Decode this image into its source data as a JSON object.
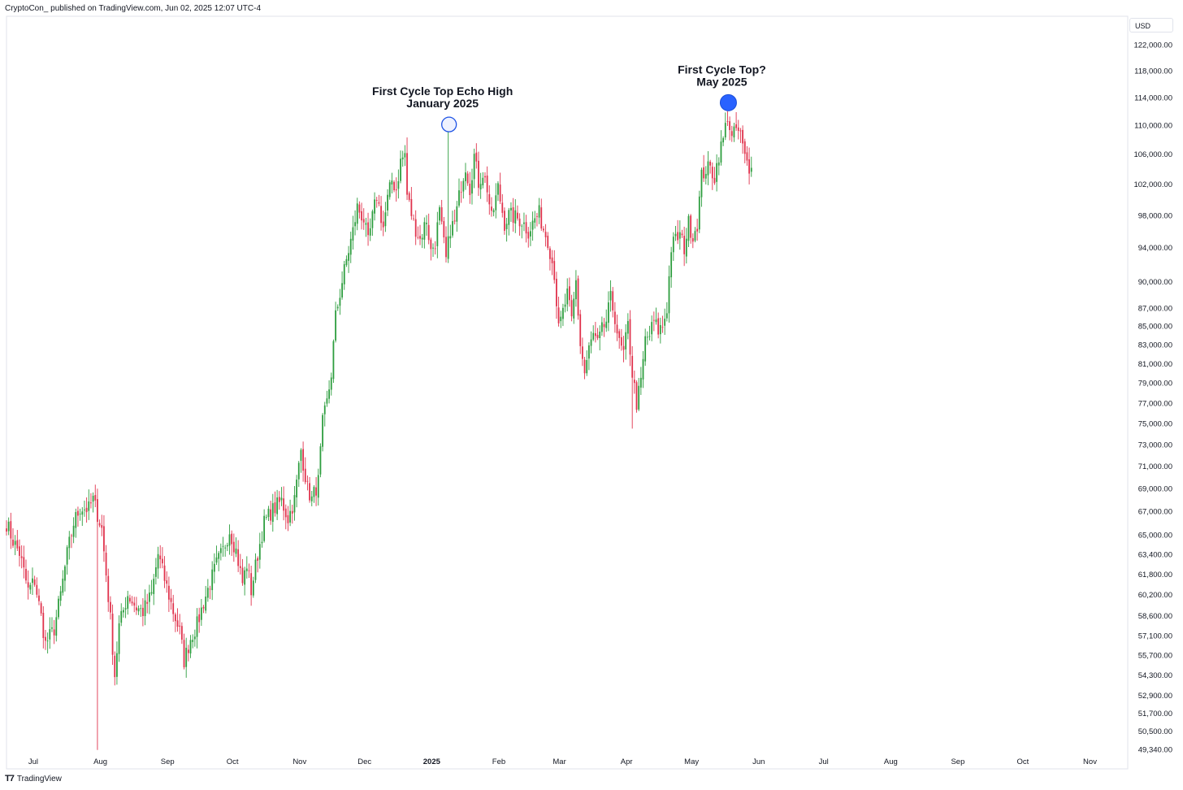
{
  "header": {
    "publisher_line": "CryptoCon_ published on TradingView.com, Jun 02, 2025 12:07 UTC-4"
  },
  "footer": {
    "logo_mark": "T7",
    "brand": "TradingView"
  },
  "price_axis": {
    "currency": "USD"
  },
  "colors": {
    "up": "#22ab94",
    "up_candle": "#2e9e3f",
    "down": "#e0334d",
    "marker_fill": "#2962ff",
    "marker_hollow": "#1e53e5",
    "axis": "#e0e3eb",
    "text": "#131722"
  },
  "chart_data": {
    "type": "candlestick",
    "scale": "log",
    "ylim": [
      48800,
      124000
    ],
    "y_ticks": [
      122000,
      118000,
      114000,
      110000,
      106000,
      102000,
      98000,
      94000,
      90000,
      87000,
      85000,
      83000,
      81000,
      79000,
      77000,
      75000,
      73000,
      71000,
      69000,
      67000,
      65000,
      63400,
      61800,
      60200,
      58600,
      57100,
      55700,
      54300,
      52900,
      51700,
      50500,
      49340
    ],
    "y_tick_labels": [
      "122,000.00",
      "118,000.00",
      "114,000.00",
      "110,000.00",
      "106,000.00",
      "102,000.00",
      "98,000.00",
      "94,000.00",
      "90,000.00",
      "87,000.00",
      "85,000.00",
      "83,000.00",
      "81,000.00",
      "79,000.00",
      "77,000.00",
      "75,000.00",
      "73,000.00",
      "71,000.00",
      "69,000.00",
      "67,000.00",
      "65,000.00",
      "63,400.00",
      "61,800.00",
      "60,200.00",
      "58,600.00",
      "57,100.00",
      "55,700.00",
      "54,300.00",
      "52,900.00",
      "51,700.00",
      "50,500.00",
      "49,340.00"
    ],
    "x_ticks": [
      {
        "label": "Jul",
        "day": 12,
        "bold": false
      },
      {
        "label": "Aug",
        "day": 43,
        "bold": false
      },
      {
        "label": "Sep",
        "day": 74,
        "bold": false
      },
      {
        "label": "Oct",
        "day": 104,
        "bold": false
      },
      {
        "label": "Nov",
        "day": 135,
        "bold": false
      },
      {
        "label": "Dec",
        "day": 165,
        "bold": false
      },
      {
        "label": "2025",
        "day": 196,
        "bold": true
      },
      {
        "label": "Feb",
        "day": 227,
        "bold": false
      },
      {
        "label": "Mar",
        "day": 255,
        "bold": false
      },
      {
        "label": "Apr",
        "day": 286,
        "bold": false
      },
      {
        "label": "May",
        "day": 316,
        "bold": false
      },
      {
        "label": "Jun",
        "day": 347,
        "bold": false
      },
      {
        "label": "Jul",
        "day": 377,
        "bold": false
      },
      {
        "label": "Aug",
        "day": 408,
        "bold": false
      },
      {
        "label": "Sep",
        "day": 439,
        "bold": false
      },
      {
        "label": "Oct",
        "day": 469,
        "bold": false
      },
      {
        "label": "Nov",
        "day": 500,
        "bold": false
      }
    ],
    "x_day_range": [
      0,
      506
    ],
    "anchors": [
      [
        0,
        66000
      ],
      [
        3,
        64500
      ],
      [
        6,
        63500
      ],
      [
        10,
        60500
      ],
      [
        13,
        61300
      ],
      [
        16,
        58500
      ],
      [
        18,
        56500
      ],
      [
        22,
        57600
      ],
      [
        25,
        60200
      ],
      [
        28,
        63400
      ],
      [
        31,
        66000
      ],
      [
        34,
        67300
      ],
      [
        38,
        67200
      ],
      [
        40,
        68000
      ],
      [
        44,
        65500
      ],
      [
        46,
        61800
      ],
      [
        48,
        58300
      ],
      [
        50,
        54300
      ],
      [
        52,
        57800
      ],
      [
        56,
        60200
      ],
      [
        60,
        59200
      ],
      [
        63,
        58900
      ],
      [
        67,
        60200
      ],
      [
        70,
        63400
      ],
      [
        73,
        61400
      ],
      [
        77,
        58900
      ],
      [
        80,
        57400
      ],
      [
        82,
        55300
      ],
      [
        85,
        56900
      ],
      [
        88,
        57900
      ],
      [
        91,
        59600
      ],
      [
        94,
        61100
      ],
      [
        97,
        62600
      ],
      [
        100,
        63700
      ],
      [
        103,
        65400
      ],
      [
        106,
        63700
      ],
      [
        109,
        61100
      ],
      [
        111,
        62600
      ],
      [
        113,
        60500
      ],
      [
        116,
        63400
      ],
      [
        119,
        66000
      ],
      [
        122,
        66900
      ],
      [
        124,
        67300
      ],
      [
        127,
        67900
      ],
      [
        130,
        66400
      ],
      [
        133,
        68000
      ],
      [
        136,
        72500
      ],
      [
        139,
        69000
      ],
      [
        141,
        68000
      ],
      [
        144,
        69600
      ],
      [
        146,
        75000
      ],
      [
        148,
        77000
      ],
      [
        150,
        80000
      ],
      [
        152,
        86000
      ],
      [
        155,
        90000
      ],
      [
        157,
        92500
      ],
      [
        160,
        96000
      ],
      [
        162,
        99000
      ],
      [
        165,
        97500
      ],
      [
        167,
        94500
      ],
      [
        169,
        97700
      ],
      [
        171,
        100500
      ],
      [
        174,
        96500
      ],
      [
        176,
        100000
      ],
      [
        178,
        102500
      ],
      [
        180,
        101300
      ],
      [
        182,
        105000
      ],
      [
        184,
        106000
      ],
      [
        185,
        100600
      ],
      [
        188,
        97000
      ],
      [
        191,
        95000
      ],
      [
        194,
        97500
      ],
      [
        196,
        93500
      ],
      [
        198,
        94800
      ],
      [
        200,
        98300
      ],
      [
        203,
        92500
      ],
      [
        205,
        96400
      ],
      [
        207,
        97000
      ],
      [
        210,
        102000
      ],
      [
        212,
        104500
      ],
      [
        214,
        101500
      ],
      [
        216,
        105800
      ],
      [
        218,
        102200
      ],
      [
        220,
        103500
      ],
      [
        222,
        101500
      ],
      [
        224,
        97500
      ],
      [
        227,
        101500
      ],
      [
        230,
        97000
      ],
      [
        232,
        98000
      ],
      [
        235,
        97700
      ],
      [
        238,
        97300
      ],
      [
        241,
        96000
      ],
      [
        244,
        97500
      ],
      [
        246,
        98200
      ],
      [
        248,
        96300
      ],
      [
        250,
        95000
      ],
      [
        253,
        91000
      ],
      [
        255,
        84500
      ],
      [
        257,
        86500
      ],
      [
        259,
        88500
      ],
      [
        261,
        85500
      ],
      [
        263,
        90000
      ],
      [
        265,
        83000
      ],
      [
        267,
        80000
      ],
      [
        269,
        82500
      ],
      [
        271,
        84000
      ],
      [
        273,
        83000
      ],
      [
        275,
        84500
      ],
      [
        277,
        85500
      ],
      [
        279,
        88000
      ],
      [
        281,
        86000
      ],
      [
        283,
        83000
      ],
      [
        285,
        82000
      ],
      [
        287,
        85000
      ],
      [
        289,
        80000
      ],
      [
        291,
        77000
      ],
      [
        293,
        79000
      ],
      [
        295,
        83500
      ],
      [
        297,
        84000
      ],
      [
        299,
        85500
      ],
      [
        301,
        84500
      ],
      [
        303,
        85000
      ],
      [
        305,
        87000
      ],
      [
        307,
        94000
      ],
      [
        309,
        95000
      ],
      [
        311,
        95500
      ],
      [
        313,
        94000
      ],
      [
        315,
        97000
      ],
      [
        317,
        95500
      ],
      [
        319,
        97000
      ],
      [
        321,
        103000
      ],
      [
        323,
        104000
      ],
      [
        325,
        104000
      ],
      [
        327,
        103000
      ],
      [
        329,
        106000
      ],
      [
        331,
        108000
      ],
      [
        333,
        111500
      ],
      [
        335,
        108000
      ],
      [
        337,
        109500
      ],
      [
        339,
        108500
      ],
      [
        341,
        105500
      ],
      [
        343,
        104300
      ],
      [
        344,
        105200
      ]
    ],
    "price_extremes": [
      {
        "day": 42,
        "low": 49300
      },
      {
        "day": 185,
        "high": 108300
      },
      {
        "day": 204,
        "high": 109100
      },
      {
        "day": 289,
        "low": 74500
      },
      {
        "day": 333,
        "high": 112000
      }
    ],
    "annotations": [
      {
        "id": "echo",
        "lines": [
          "First Cycle Top Echo High",
          "January 2025"
        ],
        "day": 204,
        "price": 109200,
        "marker": "hollow"
      },
      {
        "id": "top",
        "lines": [
          "First Cycle Top?",
          "May 2025"
        ],
        "day": 333,
        "price": 112300,
        "marker": "filled"
      }
    ]
  }
}
